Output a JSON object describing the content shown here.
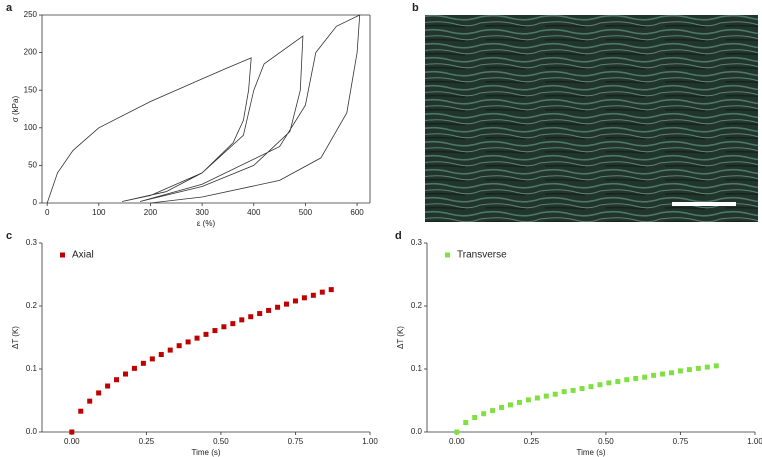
{
  "chart_data": [
    {
      "type": "line",
      "panel": "a",
      "xlabel": "ε (%)",
      "ylabel": "σ (kPa)",
      "color": "#333333",
      "x": [
        0,
        20,
        50,
        100,
        200,
        300,
        350,
        395,
        390,
        380,
        360,
        300,
        230,
        145,
        200,
        300,
        380,
        400,
        420,
        495,
        490,
        470,
        400,
        300,
        180,
        300,
        450,
        500,
        520,
        560,
        605,
        600,
        580,
        530,
        450,
        300,
        200
      ],
      "values": [
        0,
        40,
        70,
        100,
        135,
        165,
        180,
        193,
        150,
        110,
        80,
        40,
        15,
        2,
        10,
        40,
        90,
        150,
        185,
        222,
        150,
        95,
        50,
        22,
        2,
        25,
        75,
        130,
        200,
        235,
        250,
        200,
        120,
        60,
        30,
        8,
        0
      ],
      "xlim": [
        -10,
        625
      ],
      "xticks": [
        0,
        100,
        200,
        300,
        400,
        500,
        600
      ],
      "ylim": [
        0,
        250
      ],
      "yticks": [
        0,
        50,
        100,
        150,
        200,
        250
      ]
    },
    {
      "type": "image",
      "panel": "b"
    },
    {
      "type": "scatter",
      "panel": "c",
      "xlabel": "Time (s)",
      "ylabel": "ΔT (K)",
      "x": [
        0,
        0.03,
        0.06,
        0.09,
        0.12,
        0.15,
        0.18,
        0.21,
        0.24,
        0.27,
        0.3,
        0.33,
        0.36,
        0.39,
        0.42,
        0.45,
        0.48,
        0.51,
        0.54,
        0.57,
        0.6,
        0.63,
        0.66,
        0.69,
        0.72,
        0.75,
        0.78,
        0.81,
        0.84,
        0.87
      ],
      "series": [
        {
          "name": "Axial",
          "color": "#c00000",
          "values": [
            0,
            0.033,
            0.049,
            0.062,
            0.073,
            0.083,
            0.092,
            0.101,
            0.109,
            0.116,
            0.123,
            0.13,
            0.137,
            0.143,
            0.149,
            0.155,
            0.161,
            0.167,
            0.172,
            0.178,
            0.183,
            0.188,
            0.193,
            0.198,
            0.203,
            0.208,
            0.213,
            0.217,
            0.222,
            0.226
          ]
        }
      ],
      "xlim": [
        -0.1,
        1.0
      ],
      "xticks": [
        {
          "value": 0,
          "label": "0.00"
        },
        {
          "value": 0.25,
          "label": "0.25"
        },
        {
          "value": 0.5,
          "label": "0.50"
        },
        {
          "value": 0.75,
          "label": "0.75"
        },
        {
          "value": 1,
          "label": "1.00"
        }
      ],
      "ylim": [
        0,
        0.3
      ],
      "yticks": [
        {
          "value": 0,
          "label": "0.0"
        },
        0.1,
        0.2,
        0.3
      ],
      "legend": "upper left"
    },
    {
      "type": "scatter",
      "panel": "d",
      "xlabel": "Time (s)",
      "ylabel": "ΔT (K)",
      "x": [
        0,
        0.03,
        0.06,
        0.09,
        0.12,
        0.15,
        0.18,
        0.21,
        0.24,
        0.27,
        0.3,
        0.33,
        0.36,
        0.39,
        0.42,
        0.45,
        0.48,
        0.51,
        0.54,
        0.57,
        0.6,
        0.63,
        0.66,
        0.69,
        0.72,
        0.75,
        0.78,
        0.81,
        0.84,
        0.87
      ],
      "series": [
        {
          "name": "Transverse",
          "color": "#80e040",
          "values": [
            0,
            0.015,
            0.023,
            0.029,
            0.034,
            0.039,
            0.043,
            0.047,
            0.051,
            0.054,
            0.057,
            0.06,
            0.064,
            0.066,
            0.069,
            0.072,
            0.075,
            0.078,
            0.08,
            0.083,
            0.085,
            0.087,
            0.09,
            0.092,
            0.094,
            0.097,
            0.099,
            0.101,
            0.103,
            0.105
          ]
        }
      ],
      "xlim": [
        -0.1,
        1.0
      ],
      "xticks": [
        {
          "value": 0,
          "label": "0.00"
        },
        {
          "value": 0.25,
          "label": "0.25"
        },
        {
          "value": 0.5,
          "label": "0.50"
        },
        {
          "value": 0.75,
          "label": "0.75"
        },
        {
          "value": 1,
          "label": "1.00"
        }
      ],
      "ylim": [
        0,
        0.3
      ],
      "yticks": [
        {
          "value": 0,
          "label": "0.0"
        },
        0.1,
        0.2,
        0.3
      ],
      "legend": "upper left"
    }
  ]
}
